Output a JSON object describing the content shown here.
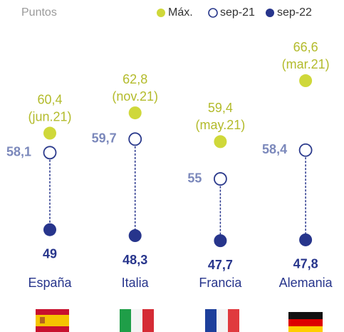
{
  "chart_data": {
    "type": "dot",
    "y_label": "Puntos",
    "categories": [
      "España",
      "Italia",
      "Francia",
      "Alemania"
    ],
    "ylim": [
      44,
      70
    ],
    "legend": "top-right",
    "series": [
      {
        "name": "Máx.",
        "color": "#cfd83a",
        "label_color": "#b3bb2b",
        "style": "filled",
        "values": [
          60.4,
          62.8,
          59.4,
          66.6
        ],
        "value_labels": [
          "60,4",
          "62,8",
          "59,4",
          "66,6"
        ],
        "dates": [
          "(jun.21)",
          "(nov.21)",
          "(may.21)",
          "(mar.21)"
        ]
      },
      {
        "name": "sep-21",
        "color": "#2b3a8c",
        "label_color": "#7b88bb",
        "style": "open",
        "values": [
          58.1,
          59.7,
          55,
          58.4
        ],
        "value_labels": [
          "58,1",
          "59,7",
          "55",
          "58,4"
        ]
      },
      {
        "name": "sep-22",
        "color": "#27358c",
        "label_color": "#27358c",
        "style": "filled",
        "values": [
          49,
          48.3,
          47.7,
          47.8
        ],
        "value_labels": [
          "49",
          "48,3",
          "47,7",
          "47,8"
        ]
      }
    ]
  }
}
